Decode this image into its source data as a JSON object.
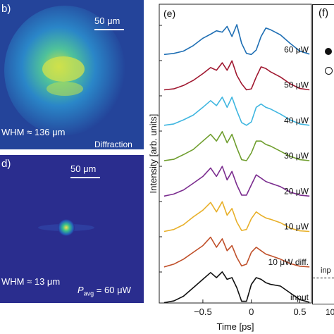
{
  "panels": {
    "b": {
      "label": "b)",
      "scale_bar": "50 μm",
      "fwhm": "WHM ≈ 136 μm",
      "mode": "Diffraction",
      "background": "#24449a",
      "spot_color": "#c9e046"
    },
    "d": {
      "label": "d)",
      "scale_bar": "50 μm",
      "fwhm": "WHM ≈ 13 μm",
      "power_p": "P",
      "power_sub": "avg",
      "power_value": " = 60 μW",
      "background": "#2a2d8e",
      "spot_color": "#f4e04d"
    },
    "f": {
      "label": "(f)",
      "tick": "10",
      "marker_label": "inp"
    }
  },
  "chart_data": {
    "type": "line",
    "panel_label": "(e)",
    "xlabel": "Time [ps]",
    "ylabel": "Intensity [arb. units]",
    "xlim": [
      -0.95,
      0.62
    ],
    "xticks": [
      -0.5,
      0,
      0.5
    ],
    "xtick_labels": [
      "−0.5",
      "0",
      "0.5"
    ],
    "x": [
      -0.9,
      -0.8,
      -0.7,
      -0.6,
      -0.5,
      -0.42,
      -0.36,
      -0.3,
      -0.25,
      -0.2,
      -0.15,
      -0.1,
      -0.05,
      0,
      0.05,
      0.1,
      0.15,
      0.2,
      0.3,
      0.4,
      0.5,
      0.6
    ],
    "series": [
      {
        "name": "60 μW",
        "color": "#1f6fb4",
        "values": [
          0.02,
          0.05,
          0.12,
          0.28,
          0.5,
          0.62,
          0.72,
          0.68,
          0.85,
          0.55,
          0.9,
          0.35,
          0.05,
          0.02,
          0.15,
          0.55,
          0.8,
          0.75,
          0.6,
          0.35,
          0.12,
          0.03
        ]
      },
      {
        "name": "50 μW",
        "color": "#a01830",
        "values": [
          0.02,
          0.05,
          0.15,
          0.3,
          0.5,
          0.68,
          0.6,
          0.82,
          0.6,
          0.88,
          0.45,
          0.2,
          0.02,
          0.05,
          0.4,
          0.7,
          0.65,
          0.55,
          0.4,
          0.2,
          0.06,
          0.02
        ]
      },
      {
        "name": "40 μW",
        "color": "#3fb6e0",
        "values": [
          0.02,
          0.06,
          0.18,
          0.32,
          0.55,
          0.75,
          0.6,
          0.85,
          0.55,
          0.85,
          0.45,
          0.1,
          0.02,
          0.12,
          0.55,
          0.65,
          0.55,
          0.5,
          0.35,
          0.18,
          0.06,
          0.02
        ]
      },
      {
        "name": "30 μW",
        "color": "#6f9e2e",
        "values": [
          0.02,
          0.06,
          0.2,
          0.35,
          0.6,
          0.8,
          0.6,
          0.88,
          0.55,
          0.8,
          0.4,
          0.05,
          0.02,
          0.25,
          0.6,
          0.6,
          0.5,
          0.45,
          0.3,
          0.15,
          0.05,
          0.02
        ]
      },
      {
        "name": "20 μW",
        "color": "#7b2d8f",
        "values": [
          0.02,
          0.08,
          0.2,
          0.4,
          0.6,
          0.85,
          0.6,
          0.9,
          0.5,
          0.75,
          0.35,
          0.05,
          0.05,
          0.35,
          0.65,
          0.55,
          0.45,
          0.4,
          0.3,
          0.14,
          0.05,
          0.02
        ]
      },
      {
        "name": "10 μW",
        "color": "#e8b02a",
        "values": [
          0.02,
          0.08,
          0.22,
          0.45,
          0.65,
          0.88,
          0.6,
          0.9,
          0.5,
          0.7,
          0.3,
          0.05,
          0.08,
          0.4,
          0.6,
          0.5,
          0.42,
          0.38,
          0.28,
          0.12,
          0.04,
          0.02
        ]
      },
      {
        "name": "10 μW diff.",
        "color": "#c0502a",
        "values": [
          0.02,
          0.1,
          0.25,
          0.45,
          0.65,
          0.9,
          0.6,
          0.85,
          0.5,
          0.65,
          0.3,
          0.05,
          0.1,
          0.45,
          0.6,
          0.5,
          0.4,
          0.35,
          0.25,
          0.12,
          0.04,
          0.02
        ]
      },
      {
        "name": "input",
        "color": "#111111",
        "values": [
          0.01,
          0.06,
          0.2,
          0.45,
          0.7,
          0.9,
          0.75,
          0.92,
          0.7,
          0.75,
          0.45,
          0.05,
          0.05,
          0.55,
          0.75,
          0.7,
          0.6,
          0.55,
          0.5,
          0.3,
          0.1,
          0.02
        ]
      }
    ]
  }
}
